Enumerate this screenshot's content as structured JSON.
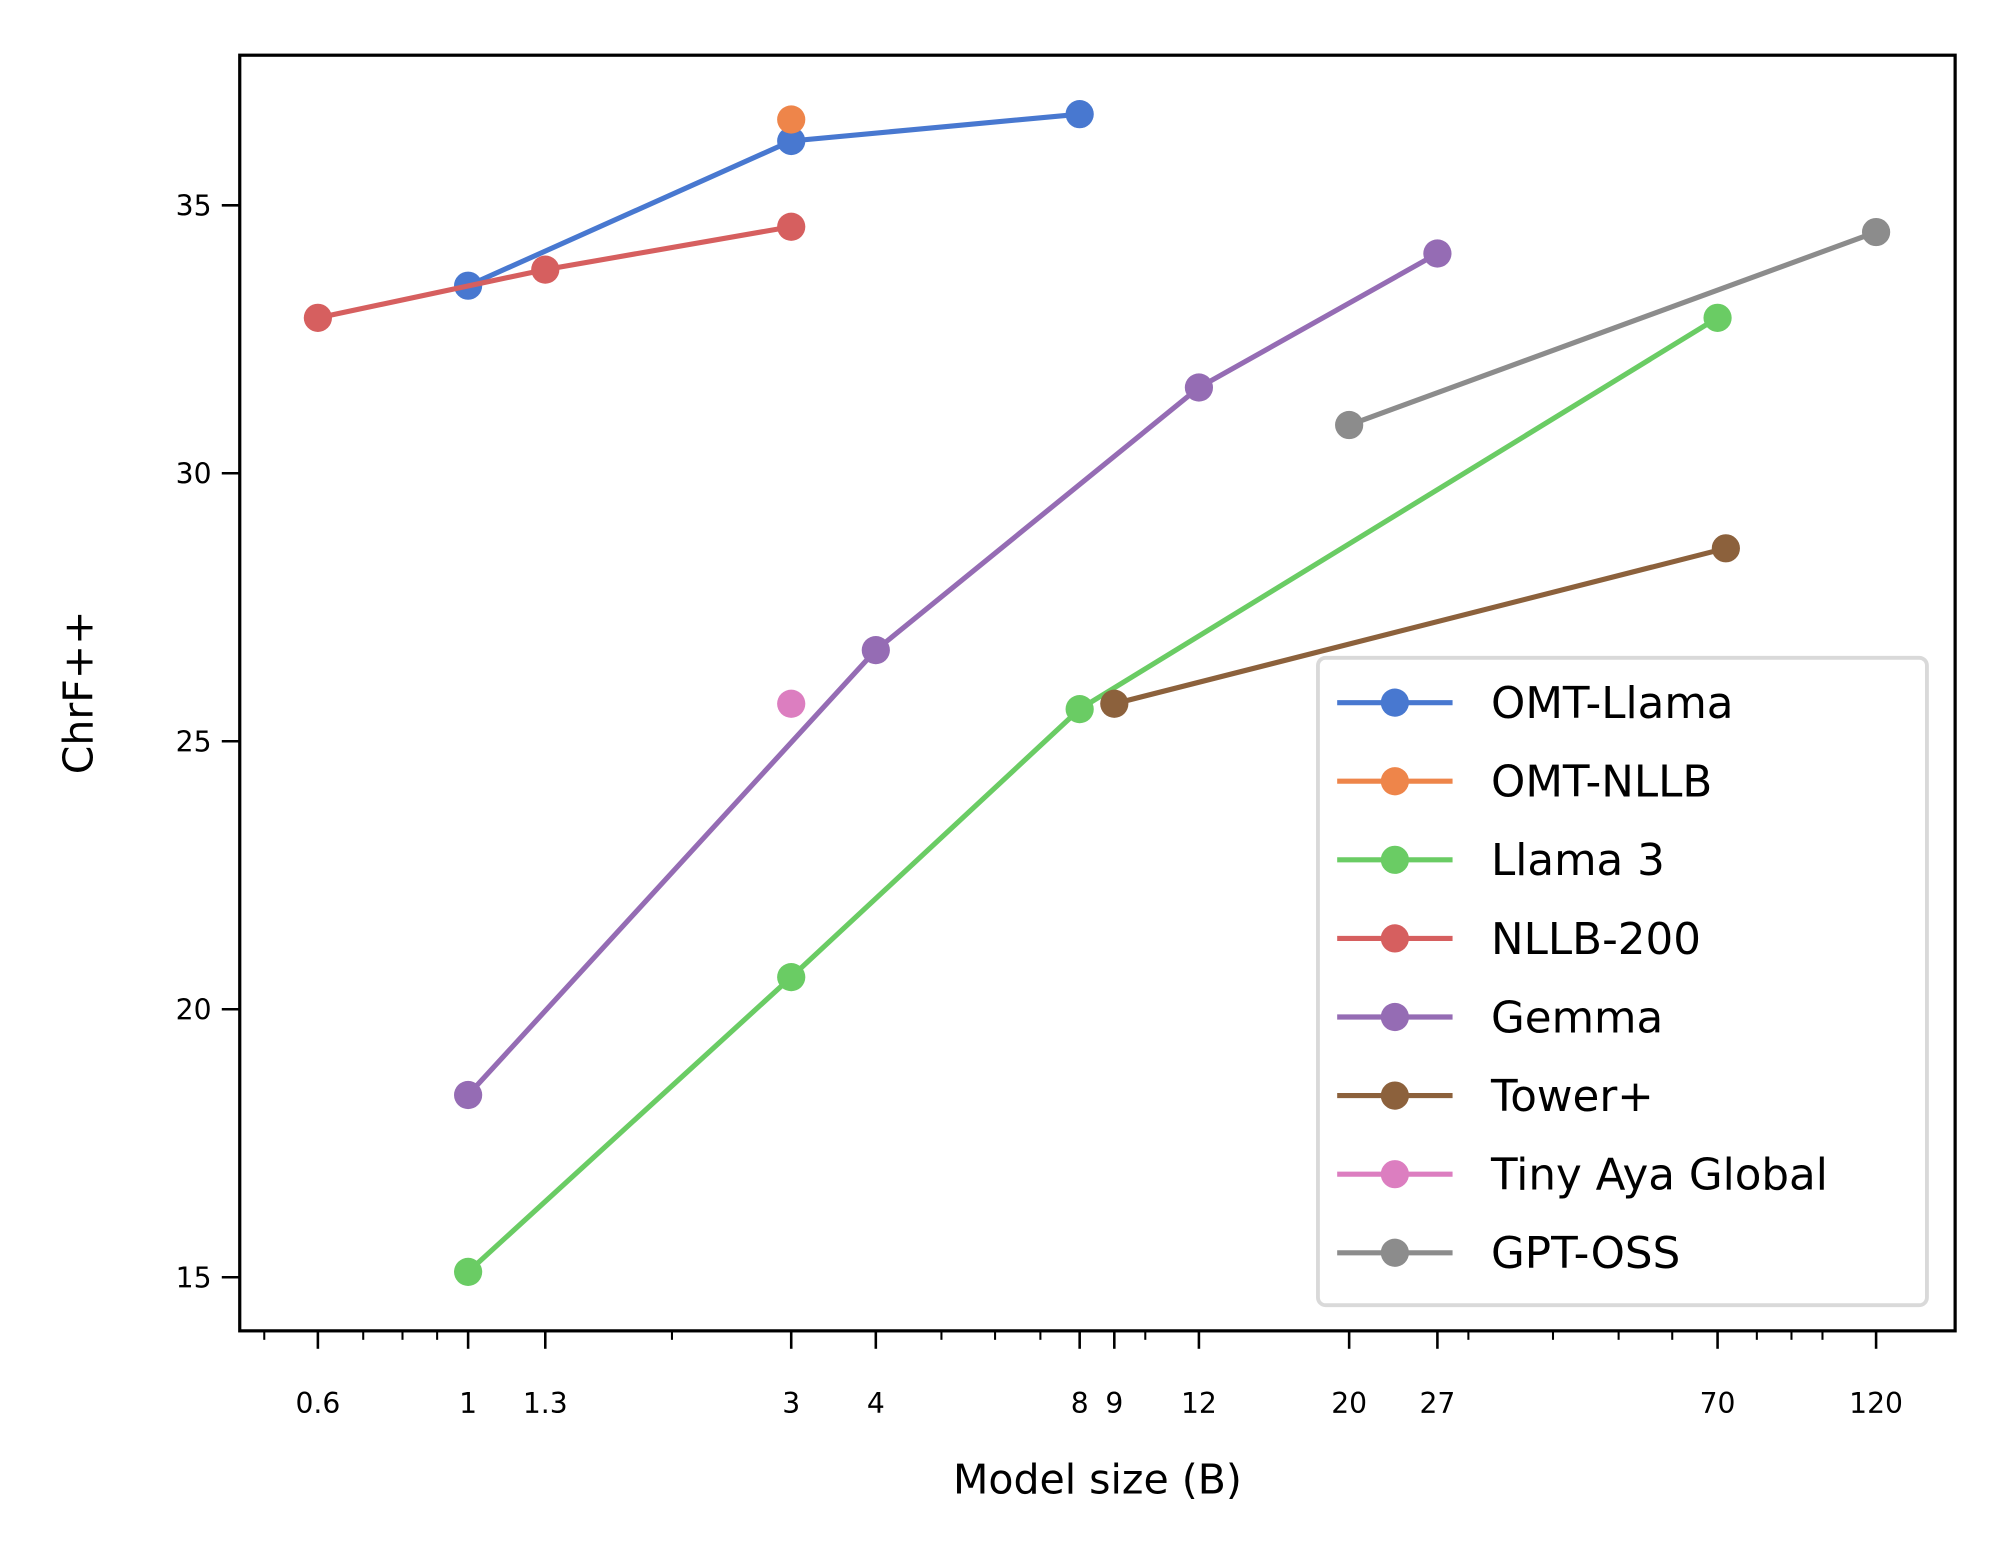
{
  "chart_data": {
    "type": "line",
    "title": "",
    "xlabel": "Model size (B)",
    "ylabel": "ChrF++",
    "xscale": "log",
    "xlim": [
      0.46,
      157
    ],
    "ylim": [
      14.0,
      37.8
    ],
    "xticks": [
      0.6,
      1,
      1.3,
      3,
      4,
      8,
      9,
      12,
      20,
      27,
      70,
      120
    ],
    "xtick_labels": [
      "0.6",
      "1",
      "1.3",
      "3",
      "4",
      "8",
      "9",
      "12",
      "20",
      "27",
      "70",
      "120"
    ],
    "yticks": [
      15,
      20,
      25,
      30,
      35
    ],
    "ytick_labels": [
      "15",
      "20",
      "25",
      "30",
      "35"
    ],
    "grid": false,
    "legend_position": "lower-right",
    "series": [
      {
        "name": "OMT-Llama",
        "color": "#4878d0",
        "x": [
          1,
          3,
          8
        ],
        "y": [
          33.5,
          36.2,
          36.7
        ]
      },
      {
        "name": "OMT-NLLB",
        "color": "#ee854a",
        "x": [
          3
        ],
        "y": [
          36.6
        ]
      },
      {
        "name": "Llama 3",
        "color": "#6acc64",
        "x": [
          1,
          3,
          8,
          70
        ],
        "y": [
          15.1,
          20.6,
          25.6,
          32.9
        ]
      },
      {
        "name": "NLLB-200",
        "color": "#d65f5f",
        "x": [
          0.6,
          1.3,
          3
        ],
        "y": [
          32.9,
          33.8,
          34.6
        ]
      },
      {
        "name": "Gemma",
        "color": "#956cb4",
        "x": [
          1,
          4,
          12,
          27
        ],
        "y": [
          18.4,
          26.7,
          31.6,
          34.1
        ]
      },
      {
        "name": "Tower+",
        "color": "#8c613c",
        "x": [
          9,
          72
        ],
        "y": [
          25.7,
          28.6
        ]
      },
      {
        "name": "Tiny Aya Global",
        "color": "#dc7ec0",
        "x": [
          3
        ],
        "y": [
          25.7
        ]
      },
      {
        "name": "GPT-OSS",
        "color": "#8c8c8c",
        "x": [
          20,
          120
        ],
        "y": [
          30.9,
          34.5
        ]
      }
    ]
  }
}
